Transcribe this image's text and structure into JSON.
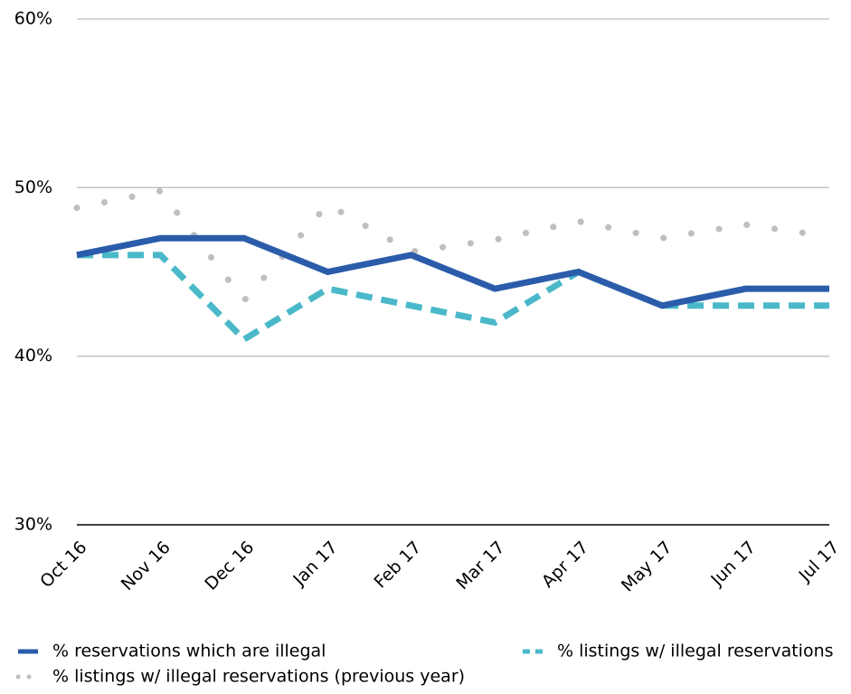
{
  "chart_data": {
    "type": "line",
    "categories": [
      "Oct 16",
      "Nov 16",
      "Dec 16",
      "Jan 17",
      "Feb 17",
      "Mar 17",
      "Apr 17",
      "May 17",
      "Jun 17",
      "Jul 17"
    ],
    "series": [
      {
        "name": "% reservations which are illegal",
        "color": "#2a5caa",
        "style": "solid",
        "values": [
          46,
          47,
          47,
          45,
          46,
          44,
          45,
          43,
          44,
          44
        ]
      },
      {
        "name": "% listings w/ illegal reservations",
        "color": "#4ab8c8",
        "style": "dashed",
        "values": [
          46,
          46,
          41,
          44,
          43,
          42,
          45,
          43,
          43,
          43
        ]
      },
      {
        "name": "% listings w/ illegal reservations (previous year)",
        "color": "#bfbfbf",
        "style": "dotted",
        "values": [
          48.8,
          49.8,
          43.3,
          49.0,
          46.2,
          46.9,
          48.0,
          47.0,
          47.8,
          47.1
        ]
      }
    ],
    "ylim": [
      30,
      60
    ],
    "yticks": [
      {
        "value": 30,
        "label": "30%"
      },
      {
        "value": 40,
        "label": "40%"
      },
      {
        "value": 50,
        "label": "50%"
      },
      {
        "value": 60,
        "label": "60%"
      }
    ],
    "grid": true
  }
}
